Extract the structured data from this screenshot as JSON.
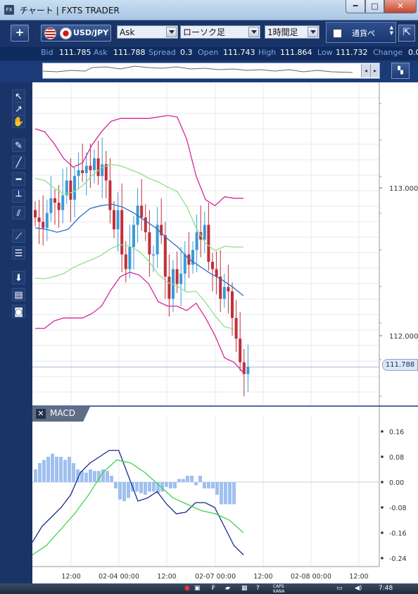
{
  "window": {
    "title": "チャート | FXTS TRADER",
    "app_icon": "FX",
    "controls": {
      "minimize": "━",
      "maximize": "□",
      "close": "✕"
    }
  },
  "toolbar": {
    "add_label": "+",
    "pair": "USD/JPY",
    "price_type": "Ask",
    "chart_type": "ローソク足",
    "timeframe": "1時間足",
    "currency_button": "通貨ペ",
    "collapse_icon": "⇱"
  },
  "quote": {
    "bid_label": "Bid",
    "bid": "111.785",
    "ask_label": "Ask",
    "ask": "111.788",
    "spread_label": "Spread",
    "spread": "0.3",
    "open_label": "Open",
    "open": "111.743",
    "high_label": "High",
    "high": "111.864",
    "low_label": "Low",
    "low": "111.732",
    "change_label": "Change",
    "change": "0.0"
  },
  "overview": {
    "left_arrow": "◂",
    "right_arrow": "▸",
    "lock_icon": "lock-icon"
  },
  "left_tools": [
    {
      "name": "pointer-icon",
      "glyph": "↖"
    },
    {
      "name": "crosshair-pointer-icon",
      "glyph": "↗"
    },
    {
      "name": "hand-icon",
      "glyph": "✋"
    },
    {
      "name": "draw-pen-icon",
      "glyph": "✎"
    },
    {
      "name": "trendline-icon",
      "glyph": "╱"
    },
    {
      "name": "horizontal-line-icon",
      "glyph": "━"
    },
    {
      "name": "vertical-line-icon",
      "glyph": "┴"
    },
    {
      "name": "channel-icon",
      "glyph": "⫽"
    },
    {
      "name": "fan-icon",
      "glyph": "⟋"
    },
    {
      "name": "fibonacci-icon",
      "glyph": "☰"
    },
    {
      "name": "down-arrow-icon",
      "glyph": "⬇"
    },
    {
      "name": "list-icon",
      "glyph": "▤"
    },
    {
      "name": "camera-icon",
      "glyph": "◙"
    }
  ],
  "price_tag": "111.788",
  "macd_label": "MACD",
  "macd_close": "✕",
  "chart_data": [
    {
      "type": "candlestick",
      "pair": "USD/JPY",
      "timeframe": "1時間足",
      "y_ticks": [
        "113.000",
        "112.000"
      ],
      "ylim": [
        111.6,
        113.6
      ],
      "x_ticks": [
        "12:00",
        "02-04 00:00",
        "12:00",
        "02-07 00:00",
        "12:00",
        "02-08 00:00",
        "12:00"
      ],
      "current_price": 111.788,
      "overlays": [
        "Bollinger Bands (+2σ/-2σ magenta, ±1σ light green)",
        "Moving Average (blue)"
      ],
      "series": [
        {
          "values": [
            112.8,
            112.77,
            112.73,
            112.83,
            112.93,
            112.9,
            112.85,
            112.95,
            113.05,
            112.92,
            113.08,
            113.12,
            113.1,
            113.15,
            113.12,
            113.2,
            113.08,
            113.16,
            113.05,
            112.85,
            112.72,
            112.85,
            112.55,
            112.45,
            112.6,
            112.75,
            112.88,
            112.8,
            112.7,
            112.55,
            112.55,
            112.75,
            112.68,
            112.4,
            112.25,
            112.45,
            112.35,
            112.42,
            112.55,
            112.48,
            112.58,
            112.7,
            112.65,
            112.75,
            112.5,
            112.45,
            112.4,
            112.25,
            112.33,
            112.3,
            112.12,
            111.98,
            111.82,
            111.74,
            111.79
          ]
        },
        {
          "name": "Bollinger Band Upper +2σ",
          "values": [
            113.4,
            113.38,
            113.3,
            113.2,
            113.14,
            113.17,
            113.29,
            113.38,
            113.45,
            113.47,
            113.47,
            113.47,
            113.47,
            113.48,
            113.49,
            113.48,
            113.33,
            113.08,
            112.92,
            112.88,
            112.94,
            112.93,
            112.93
          ]
        },
        {
          "name": "Bollinger Band Lower -2σ",
          "values": [
            112.05,
            112.05,
            112.1,
            112.12,
            112.12,
            112.12,
            112.15,
            112.2,
            112.31,
            112.4,
            112.43,
            112.41,
            112.35,
            112.23,
            112.2,
            112.2,
            112.17,
            112.22,
            112.12,
            112.0,
            111.85,
            111.82,
            111.75
          ]
        },
        {
          "name": "Moving Average",
          "values": [
            112.73,
            112.72,
            112.7,
            112.72,
            112.8,
            112.86,
            112.88,
            112.89,
            112.87,
            112.83,
            112.78,
            112.73,
            112.66,
            112.6,
            112.52,
            112.47,
            112.42,
            112.38,
            112.33,
            112.27
          ]
        }
      ]
    },
    {
      "type": "bar+line",
      "title": "MACD",
      "y_ticks": [
        "0.16",
        "0.08",
        "0.00",
        "-0.08",
        "-0.16",
        "-0.24"
      ],
      "ylim": [
        -0.26,
        0.18
      ],
      "series": [
        {
          "name": "Histogram",
          "values": [
            0.04,
            0.06,
            0.07,
            0.08,
            0.09,
            0.08,
            0.08,
            0.07,
            0.08,
            0.06,
            0.04,
            0.035,
            0.03,
            0.04,
            0.035,
            0.035,
            0.04,
            0.035,
            0.02,
            -0.02,
            -0.055,
            -0.06,
            -0.05,
            -0.03,
            -0.03,
            -0.035,
            -0.04,
            -0.03,
            -0.03,
            -0.035,
            -0.03,
            -0.015,
            -0.02,
            -0.02,
            0.01,
            0.01,
            0.02,
            0.02,
            -0.01,
            0.02,
            -0.02,
            -0.02,
            -0.02,
            -0.04,
            -0.07,
            -0.07,
            -0.07,
            -0.07
          ]
        },
        {
          "name": "MACD Line",
          "values": [
            -0.19,
            -0.14,
            -0.11,
            -0.08,
            -0.04,
            0.03,
            0.06,
            0.08,
            0.1,
            0.1,
            0.02,
            -0.06,
            -0.05,
            -0.03,
            -0.07,
            -0.1,
            -0.095,
            -0.065,
            -0.065,
            -0.08,
            -0.14,
            -0.2,
            -0.23
          ]
        },
        {
          "name": "Signal Line",
          "values": [
            -0.23,
            -0.2,
            -0.15,
            -0.1,
            -0.04,
            0.03,
            0.07,
            0.06,
            0.03,
            -0.01,
            -0.05,
            -0.07,
            -0.09,
            -0.1,
            -0.12,
            -0.16
          ]
        }
      ]
    }
  ],
  "taskbar": {
    "caps": "CAPS",
    "kana": "KANA",
    "time": "7:48"
  }
}
